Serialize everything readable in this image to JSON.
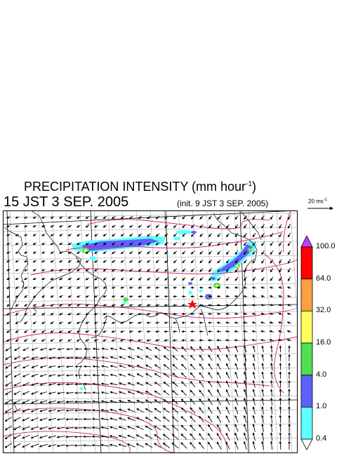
{
  "header": {
    "title": "PRECIPITATION INTENSITY (mm hour",
    "title_exp": "-1",
    "title_close": ")",
    "valid_time": "15 JST 3 SEP. 2005",
    "init_time": "(init. 9 JST 3 SEP. 2005)",
    "ref_vector_label": "20 ms",
    "ref_vector_exp": "-1"
  },
  "colorbar": {
    "levels": [
      {
        "label": "100.0",
        "color": "#ff0000"
      },
      {
        "label": "64.0",
        "color": "#ffa040"
      },
      {
        "label": "32.0",
        "color": "#ffff60"
      },
      {
        "label": "16.0",
        "color": "#50e050"
      },
      {
        "label": "4.0",
        "color": "#6060ff"
      },
      {
        "label": "1.0",
        "color": "#60ffff"
      },
      {
        "label": "0.4",
        "color": "#ffffff"
      }
    ],
    "top_color": "#c040ff"
  },
  "map_colors": {
    "isobar": "#d0207a",
    "grid": "#999999",
    "coast": "#000000",
    "marker": "#ff0000"
  }
}
